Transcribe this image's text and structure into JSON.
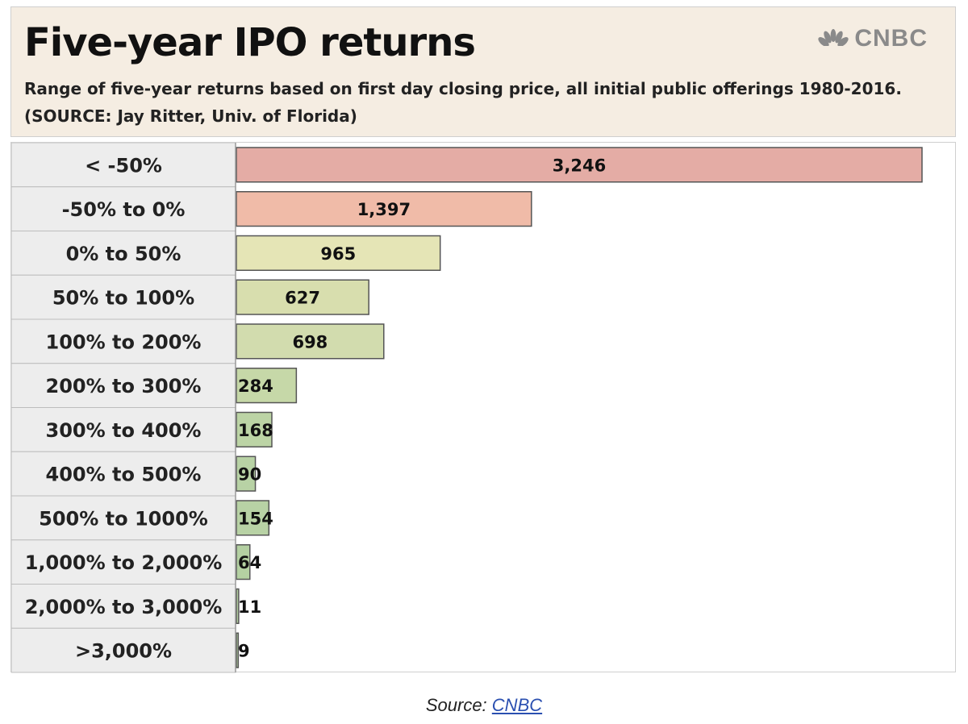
{
  "header": {
    "title": "Five-year IPO returns",
    "subtitle": "Range of five-year returns based on first day closing price, all  initial public offerings 1980-2016. (SOURCE: Jay Ritter, Univ. of Florida)",
    "logo_text": "CNBC"
  },
  "caption": {
    "prefix": "Source:",
    "link_text": "CNBC"
  },
  "colors": {
    "loss_dark": "#e4aca5",
    "loss_light": "#f0bba8",
    "gain_low": "#e5e5b6",
    "gain_mid": "#d2dcae",
    "gain_high": "#b8d2a5",
    "label_cell": "#ededed"
  },
  "chart_data": {
    "type": "bar",
    "orientation": "horizontal",
    "title": "Five-year IPO returns",
    "xlabel": "",
    "ylabel": "",
    "xlim": [
      0,
      3246
    ],
    "grid": false,
    "legend": "none",
    "categories": [
      "< -50%",
      "-50% to 0%",
      "0% to 50%",
      "50% to 100%",
      "100% to 200%",
      "200% to 300%",
      "300% to 400%",
      "400% to 500%",
      "500% to 1000%",
      "1,000% to 2,000%",
      "2,000% to 3,000%",
      ">3,000%"
    ],
    "values": [
      3246,
      1397,
      965,
      627,
      698,
      284,
      168,
      90,
      154,
      64,
      11,
      9
    ],
    "value_labels": [
      "3,246",
      "1,397",
      "965",
      "627",
      "698",
      "284",
      "168",
      "90",
      "154",
      "64",
      "11",
      "9"
    ],
    "bar_colors": [
      "#e4aca5",
      "#f0bba8",
      "#e5e5b6",
      "#d8deae",
      "#d2dcae",
      "#c6d8a8",
      "#bcd4a5",
      "#b8d2a5",
      "#b8d2a5",
      "#b4d0a2",
      "#b4d0a2",
      "#b4d0a2"
    ]
  }
}
